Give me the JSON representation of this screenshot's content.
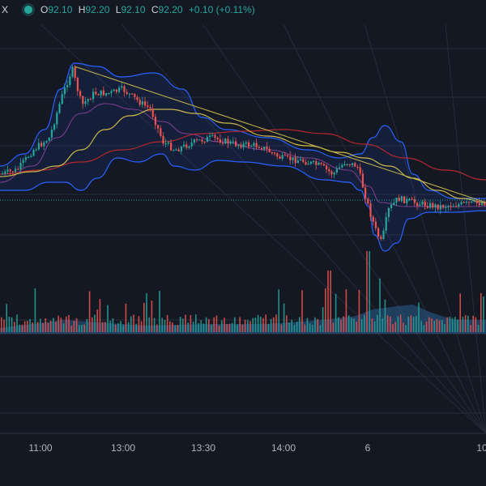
{
  "legend": {
    "symbol_fragment": "X",
    "open_label": "O",
    "open": "92.10",
    "high_label": "H",
    "high": "92.20",
    "low_label": "L",
    "low": "92.10",
    "close_label": "C",
    "close": "92.20",
    "change": "+0.10 (+0.11%)"
  },
  "colors": {
    "background": "#141823",
    "grid": "#262b38",
    "up": "#26a69a",
    "down": "#ef5350",
    "bollinger": "#2962ff",
    "ma_fast": "#c9b84c",
    "ma_slow": "#b2282e",
    "ma_inner": "#7b3f8c",
    "volume_area": "#2a5f8f"
  },
  "chart_data": {
    "type": "candlestick",
    "x_tick_labels": [
      "11:00",
      "13:00",
      "13:30",
      "14:00",
      "6",
      "10"
    ],
    "last_price_line": true,
    "indicators": [
      "Bollinger Bands",
      "Moving Average",
      "Moving Average",
      "Volume"
    ],
    "grid": true
  }
}
